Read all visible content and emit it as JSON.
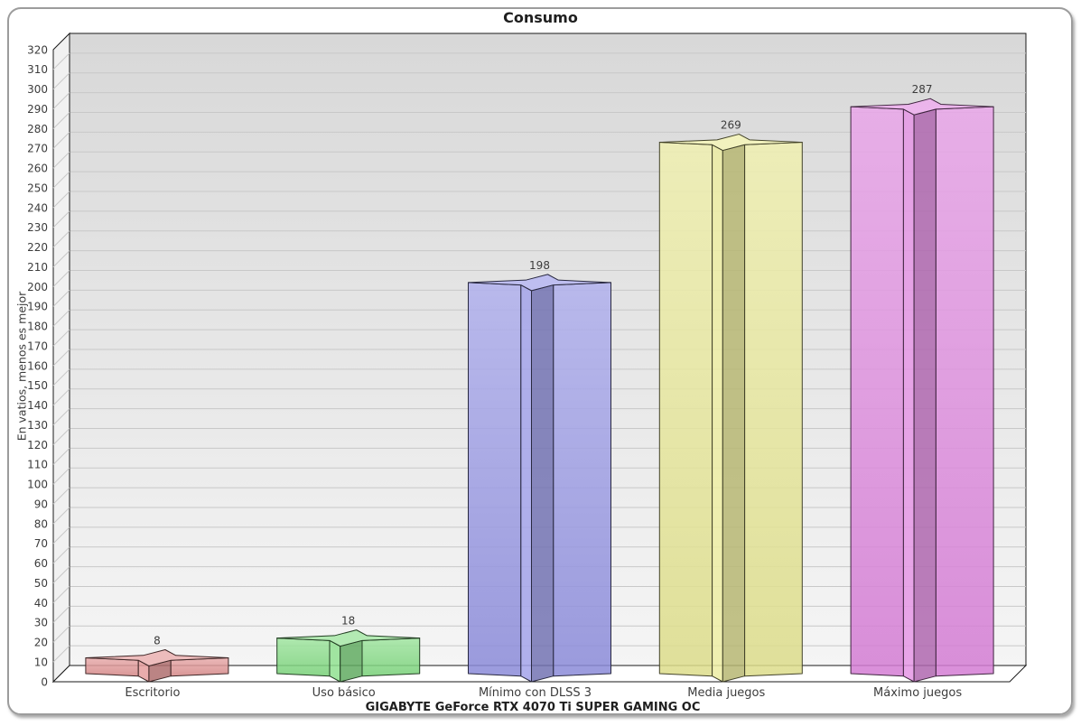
{
  "chart_data": {
    "type": "bar",
    "style": "3d-star-columns",
    "title": "Consumo",
    "xlabel": "GIGABYTE GeForce RTX 4070 Ti SUPER GAMING OC",
    "ylabel": "En vatios, menos es mejor",
    "ylim": [
      0,
      320
    ],
    "ytick_step": 10,
    "grid": true,
    "legend": "none",
    "categories": [
      "Escritorio",
      "Uso básico",
      "Mínimo con DLSS 3",
      "Media juegos",
      "Máximo juegos"
    ],
    "values": [
      8,
      18,
      198,
      269,
      287
    ],
    "bar_colors": [
      "#e08d8d",
      "#7edc7e",
      "#9393e6",
      "#eaea93",
      "#e084e0"
    ],
    "wall_top_color": "#d8d8d8",
    "wall_bottom_color": "#f5f5f5",
    "gridline_color": "#c8c8c8",
    "axis_line_color": "#1a1a1a",
    "label_color": "#3c3c3c"
  }
}
